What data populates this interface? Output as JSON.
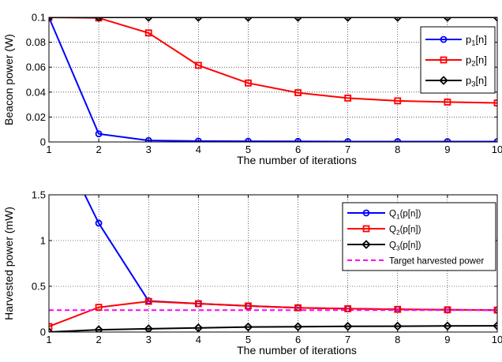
{
  "chart_data": [
    {
      "type": "line",
      "xlabel": "The number of iterations",
      "ylabel": "Beacon power (W)",
      "xlim": [
        1,
        10
      ],
      "ylim": [
        0,
        0.1
      ],
      "xticks": [
        1,
        2,
        3,
        4,
        5,
        6,
        7,
        8,
        9,
        10
      ],
      "xtick_labels": [
        "1",
        "2",
        "3",
        "4",
        "5",
        "6",
        "7",
        "8",
        "9",
        "10"
      ],
      "yticks": [
        0,
        0.02,
        0.04,
        0.06,
        0.08,
        0.1
      ],
      "ytick_labels": [
        "0",
        "0.02",
        "0.04",
        "0.06",
        "0.08",
        "0.1"
      ],
      "grid": true,
      "legend_position": "top-right",
      "x": [
        1,
        2,
        3,
        4,
        5,
        6,
        7,
        8,
        9,
        10
      ],
      "series": [
        {
          "name": "p1[n]",
          "label_main": "p",
          "label_sub": "1",
          "label_tail": "[n]",
          "color": "#0000ff",
          "marker": "circle",
          "values": [
            0.1,
            0.0065,
            0.0012,
            0.0007,
            0.0006,
            0.0005,
            0.0003,
            0.0003,
            0.0003,
            0.0003
          ]
        },
        {
          "name": "p2[n]",
          "label_main": "p",
          "label_sub": "2",
          "label_tail": "[n]",
          "color": "#ff0000",
          "marker": "square",
          "values": [
            0.1,
            0.0995,
            0.0875,
            0.0615,
            0.0473,
            0.0395,
            0.0352,
            0.033,
            0.032,
            0.0313
          ]
        },
        {
          "name": "p3[n]",
          "label_main": "p",
          "label_sub": "3",
          "label_tail": "[n]",
          "color": "#000000",
          "marker": "diamond",
          "values": [
            0.1,
            0.1,
            0.1,
            0.1,
            0.1,
            0.1,
            0.1,
            0.1,
            0.1,
            0.1
          ]
        }
      ]
    },
    {
      "type": "line",
      "xlabel": "The number of iterations",
      "ylabel": "Harvested power (mW)",
      "xlim": [
        1,
        10
      ],
      "ylim": [
        0,
        1.5
      ],
      "xticks": [
        1,
        2,
        3,
        4,
        5,
        6,
        7,
        8,
        9,
        10
      ],
      "xtick_labels": [
        "1",
        "2",
        "3",
        "4",
        "5",
        "6",
        "7",
        "8",
        "9",
        "10"
      ],
      "yticks": [
        0,
        0.5,
        1,
        1.5
      ],
      "ytick_labels": [
        "0",
        "0.5",
        "1",
        "1.5"
      ],
      "grid": true,
      "legend_position": "top-right",
      "x": [
        1,
        2,
        3,
        4,
        5,
        6,
        7,
        8,
        9,
        10
      ],
      "series": [
        {
          "name": "Q1(p[n])",
          "label_main": "Q",
          "label_sub": "1",
          "label_tail": "(p[n])",
          "color": "#0000ff",
          "marker": "circle",
          "values": [
            2.3,
            1.19,
            0.34,
            0.31,
            0.285,
            0.265,
            0.255,
            0.248,
            0.243,
            0.24
          ]
        },
        {
          "name": "Q2(p[n])",
          "label_main": "Q",
          "label_sub": "2",
          "label_tail": "(p[n])",
          "color": "#ff0000",
          "marker": "square",
          "values": [
            0.06,
            0.27,
            0.335,
            0.31,
            0.285,
            0.265,
            0.255,
            0.248,
            0.243,
            0.24
          ]
        },
        {
          "name": "Q3(p[n])",
          "label_main": "Q",
          "label_sub": "3",
          "label_tail": "(p[n])",
          "color": "#000000",
          "marker": "diamond",
          "values": [
            0.0,
            0.025,
            0.035,
            0.045,
            0.055,
            0.058,
            0.062,
            0.064,
            0.066,
            0.068
          ]
        },
        {
          "name": "Target harvested power",
          "label_main": "Target harvested power",
          "label_sub": "",
          "label_tail": "",
          "color": "#ff00ff",
          "marker": "none",
          "dashed": true,
          "values": [
            0.24,
            0.24,
            0.24,
            0.24,
            0.24,
            0.24,
            0.24,
            0.24,
            0.24,
            0.24
          ]
        }
      ]
    }
  ]
}
